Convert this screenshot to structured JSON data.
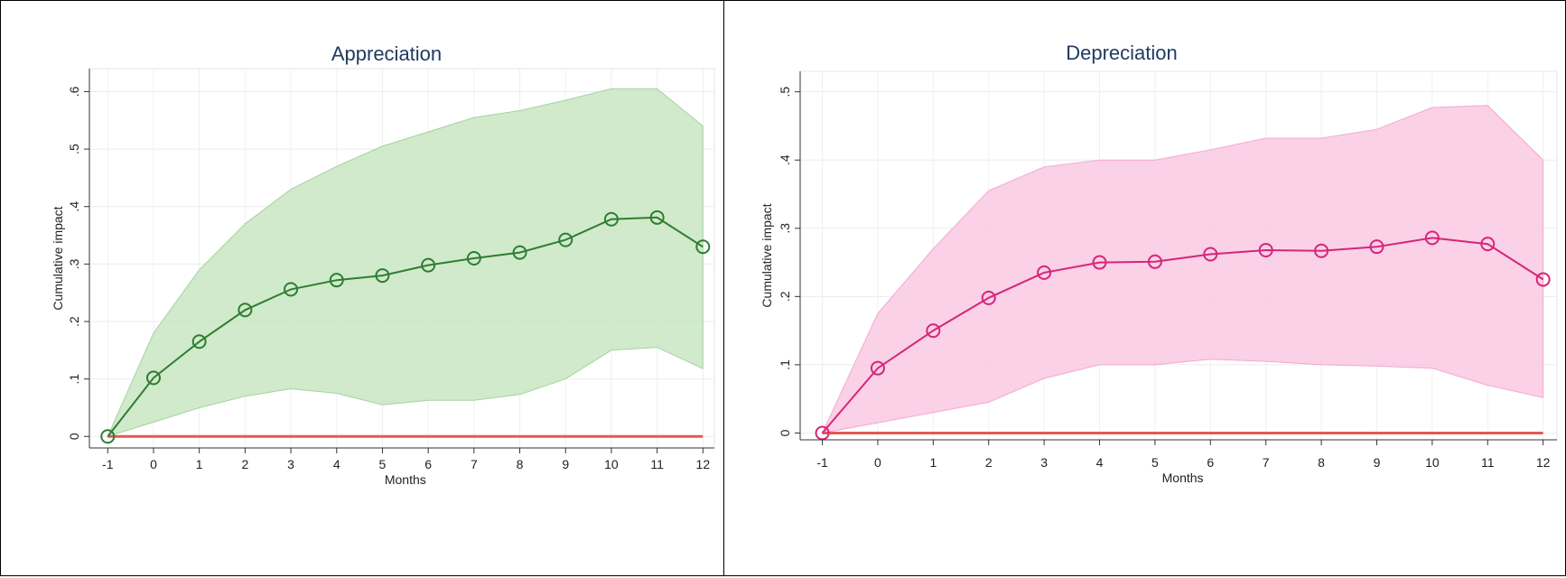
{
  "chart_data": [
    {
      "type": "line",
      "title": "Appreciation",
      "xlabel": "Months",
      "ylabel": "Cumulative impact",
      "x": [
        -1,
        0,
        1,
        2,
        3,
        4,
        5,
        6,
        7,
        8,
        9,
        10,
        11,
        12
      ],
      "xticks": [
        "-1",
        "0",
        "1",
        "2",
        "3",
        "4",
        "5",
        "6",
        "7",
        "8",
        "9",
        "10",
        "11",
        "12"
      ],
      "yticks": [
        0,
        0.1,
        0.2,
        0.3,
        0.4,
        0.5,
        0.6
      ],
      "ytick_labels": [
        "0",
        ".1",
        ".2",
        ".3",
        ".4",
        ".5",
        ".6"
      ],
      "ylim": [
        -0.02,
        0.64
      ],
      "grid": true,
      "series": [
        {
          "values": [
            0,
            0.102,
            0.165,
            0.22,
            0.256,
            0.272,
            0.28,
            0.298,
            0.31,
            0.32,
            0.342,
            0.378,
            0.381,
            0.33
          ],
          "ci_upper": [
            0,
            0.18,
            0.29,
            0.37,
            0.43,
            0.47,
            0.505,
            0.53,
            0.555,
            0.567,
            0.585,
            0.605,
            0.605,
            0.54
          ],
          "ci_lower": [
            0,
            0.025,
            0.05,
            0.07,
            0.083,
            0.075,
            0.055,
            0.063,
            0.063,
            0.073,
            0.1,
            0.15,
            0.155,
            0.118
          ]
        }
      ],
      "reference_line": 0,
      "colors": {
        "line": "#2e7d32",
        "band": "#c8e6c2",
        "band_edge": "#a5d3a0",
        "ref": "#e05a55"
      }
    },
    {
      "type": "line",
      "title": "Depreciation",
      "xlabel": "Months",
      "ylabel": "Cumulative impact",
      "x": [
        -1,
        0,
        1,
        2,
        3,
        4,
        5,
        6,
        7,
        8,
        9,
        10,
        11,
        12
      ],
      "xticks": [
        "-1",
        "0",
        "1",
        "2",
        "3",
        "4",
        "5",
        "6",
        "7",
        "8",
        "9",
        "10",
        "11",
        "12"
      ],
      "yticks": [
        0,
        0.1,
        0.2,
        0.3,
        0.4,
        0.5
      ],
      "ytick_labels": [
        "0",
        ".1",
        ".2",
        ".3",
        ".4",
        ".5"
      ],
      "ylim": [
        -0.01,
        0.53
      ],
      "grid": true,
      "series": [
        {
          "values": [
            0,
            0.095,
            0.15,
            0.198,
            0.235,
            0.25,
            0.251,
            0.262,
            0.268,
            0.267,
            0.273,
            0.286,
            0.277,
            0.225
          ],
          "ci_upper": [
            0,
            0.175,
            0.27,
            0.355,
            0.39,
            0.4,
            0.4,
            0.415,
            0.432,
            0.432,
            0.445,
            0.477,
            0.48,
            0.4
          ],
          "ci_lower": [
            0,
            0.015,
            0.03,
            0.045,
            0.08,
            0.1,
            0.1,
            0.108,
            0.105,
            0.1,
            0.098,
            0.095,
            0.07,
            0.052
          ]
        }
      ],
      "reference_line": 0,
      "colors": {
        "line": "#d6257a",
        "band": "#f9c9e3",
        "band_edge": "#f2a9d1",
        "ref": "#e05a55"
      }
    }
  ]
}
